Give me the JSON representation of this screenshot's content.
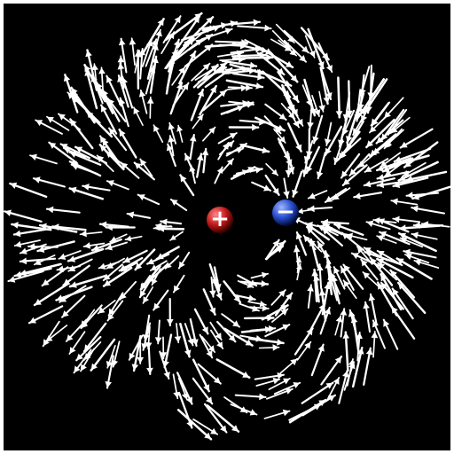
{
  "scene": {
    "background_color": "#000000",
    "frame_color": "#ffffff",
    "arrow_color": "#ffffff"
  },
  "charges": {
    "positive": {
      "sign": "+",
      "color": "#c41a1a",
      "highlight": "#ff8a8a",
      "shadow": "#3a0000"
    },
    "negative": {
      "sign": "−",
      "color": "#2a4fd0",
      "highlight": "#9fb6ff",
      "shadow": "#000a3a"
    }
  }
}
